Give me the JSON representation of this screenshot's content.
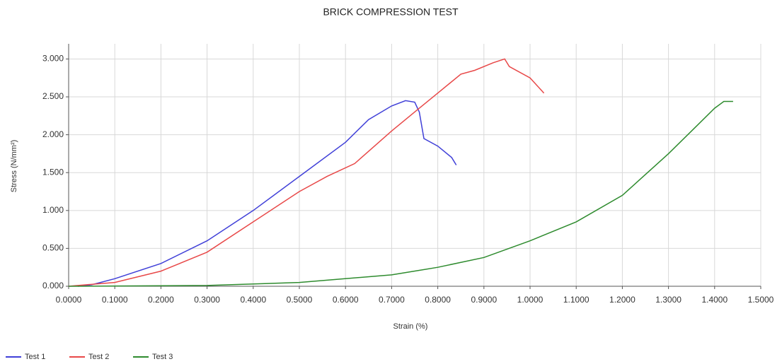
{
  "chart_data": {
    "type": "line",
    "title": "BRICK COMPRESSION TEST",
    "x_label": "Strain (%)",
    "y_label": "Stress (N/mm²)",
    "xlim": [
      0,
      1.5
    ],
    "ylim": [
      0,
      3.2
    ],
    "xticks": [
      {
        "value": 0,
        "label": "0.0000"
      },
      {
        "value": 0.1,
        "label": "0.1000"
      },
      {
        "value": 0.2,
        "label": "0.2000"
      },
      {
        "value": 0.3,
        "label": "0.3000"
      },
      {
        "value": 0.4,
        "label": "0.4000"
      },
      {
        "value": 0.5,
        "label": "0.5000"
      },
      {
        "value": 0.6,
        "label": "0.6000"
      },
      {
        "value": 0.7,
        "label": "0.7000"
      },
      {
        "value": 0.8,
        "label": "0.8000"
      },
      {
        "value": 0.9,
        "label": "0.9000"
      },
      {
        "value": 1.0,
        "label": "1.0000"
      },
      {
        "value": 1.1,
        "label": "1.1000"
      },
      {
        "value": 1.2,
        "label": "1.2000"
      },
      {
        "value": 1.3,
        "label": "1.3000"
      },
      {
        "value": 1.4,
        "label": "1.4000"
      },
      {
        "value": 1.5,
        "label": "1.5000"
      }
    ],
    "yticks": [
      {
        "value": 0,
        "label": "0.000"
      },
      {
        "value": 0.5,
        "label": "0.500"
      },
      {
        "value": 1,
        "label": "1.000"
      },
      {
        "value": 1.5,
        "label": "1.500"
      },
      {
        "value": 2,
        "label": "2.000"
      },
      {
        "value": 2.5,
        "label": "2.500"
      },
      {
        "value": 3,
        "label": "3.000"
      }
    ],
    "grid": true,
    "legend": "bottom-left",
    "series": [
      {
        "name": "Test 1",
        "color": "#4040d8",
        "x": [
          0.02,
          0.05,
          0.1,
          0.2,
          0.3,
          0.4,
          0.5,
          0.6,
          0.65,
          0.7,
          0.73,
          0.75,
          0.76,
          0.77,
          0.8,
          0.83,
          0.84
        ],
        "values": [
          0,
          0.02,
          0.1,
          0.3,
          0.6,
          1.0,
          1.45,
          1.9,
          2.2,
          2.38,
          2.45,
          2.43,
          2.3,
          1.95,
          1.85,
          1.7,
          1.6
        ]
      },
      {
        "name": "Test 2",
        "color": "#e84848",
        "x": [
          0,
          0.1,
          0.2,
          0.3,
          0.4,
          0.5,
          0.56,
          0.62,
          0.7,
          0.76,
          0.8,
          0.85,
          0.88,
          0.92,
          0.945,
          0.955,
          1.0,
          1.03
        ],
        "values": [
          0,
          0.05,
          0.2,
          0.45,
          0.85,
          1.25,
          1.45,
          1.62,
          2.05,
          2.35,
          2.55,
          2.8,
          2.85,
          2.95,
          3.0,
          2.9,
          2.75,
          2.55
        ]
      },
      {
        "name": "Test 3",
        "color": "#2e8b2e",
        "x": [
          0,
          0.3,
          0.5,
          0.7,
          0.8,
          0.9,
          1.0,
          1.1,
          1.2,
          1.3,
          1.35,
          1.4,
          1.42,
          1.44
        ],
        "values": [
          0,
          0.01,
          0.05,
          0.15,
          0.25,
          0.38,
          0.6,
          0.85,
          1.2,
          1.75,
          2.05,
          2.35,
          2.44,
          2.44
        ]
      }
    ]
  }
}
